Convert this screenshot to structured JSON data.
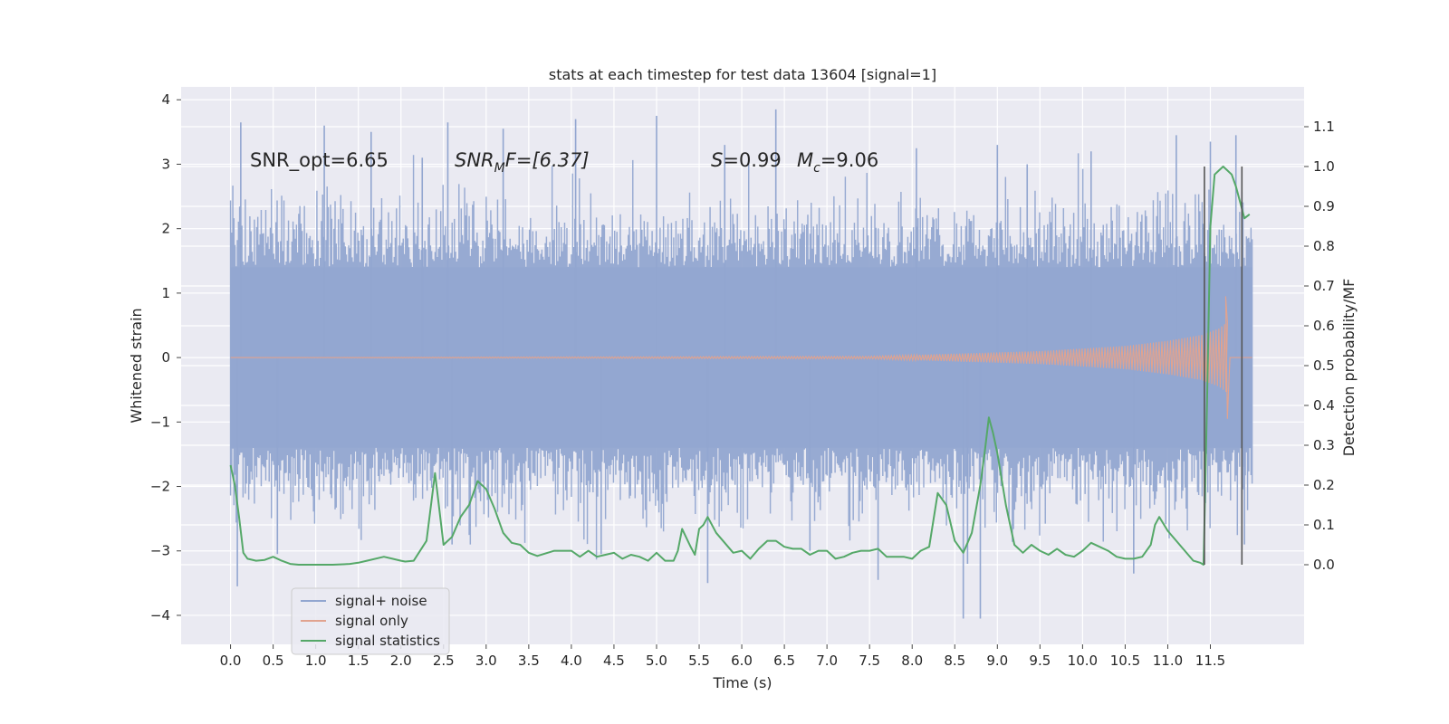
{
  "chart_data": {
    "type": "line",
    "title": "stats at each timestep for test data 13604 [signal=1]",
    "xlabel": "Time (s)",
    "ylabel": "Whitened strain",
    "ylabel_right": "Detection probability/MF",
    "xlim": [
      -0.58,
      12.6
    ],
    "ylim": [
      -4.45,
      4.2
    ],
    "ylim_right": [
      -0.2,
      1.2
    ],
    "xticks": [
      "0.0",
      "0.5",
      "1.0",
      "1.5",
      "2.0",
      "2.5",
      "3.0",
      "3.5",
      "4.0",
      "4.5",
      "5.0",
      "5.5",
      "6.0",
      "6.5",
      "7.0",
      "7.5",
      "8.0",
      "8.5",
      "9.0",
      "9.5",
      "10.0",
      "10.5",
      "11.0",
      "11.5"
    ],
    "yticks_left": [
      "4",
      "3",
      "2",
      "1",
      "0",
      "−1",
      "−2",
      "−3",
      "−4"
    ],
    "yticks_right": [
      "1.1",
      "1.0",
      "0.9",
      "0.8",
      "0.7",
      "0.6",
      "0.5",
      "0.4",
      "0.3",
      "0.2",
      "0.1",
      "0.0"
    ],
    "grid": true,
    "legend_position": "lower-left",
    "annotations": {
      "snr_opt": "SNR_opt=6.65",
      "snr_mf_name": "SNR",
      "snr_mf_sub": "M",
      "snr_mf_rest": "F=[6.37]",
      "s_label": "S",
      "s_value": "=0.99",
      "mc_label": "M",
      "mc_sub": "c",
      "mc_value": "=9.06"
    },
    "vlines": [
      11.43,
      11.87
    ],
    "series": [
      {
        "name": "signal+ noise",
        "color": "#92a6d0",
        "axis": "left",
        "description_time_range": [
          0.0,
          11.99
        ],
        "envelope_typical": [
          -1.4,
          1.4
        ],
        "peak_values": [
          {
            "x": 0.12,
            "y": 3.65
          },
          {
            "x": 0.08,
            "y": -3.55
          },
          {
            "x": 0.55,
            "y": -3.05
          },
          {
            "x": 1.1,
            "y": 3.6
          },
          {
            "x": 1.65,
            "y": 3.5
          },
          {
            "x": 2.25,
            "y": 3.1
          },
          {
            "x": 2.55,
            "y": 3.65
          },
          {
            "x": 2.6,
            "y": -2.9
          },
          {
            "x": 3.2,
            "y": 3.55
          },
          {
            "x": 4.05,
            "y": 3.7
          },
          {
            "x": 4.35,
            "y": -3.05
          },
          {
            "x": 5.0,
            "y": 3.75
          },
          {
            "x": 5.6,
            "y": -3.5
          },
          {
            "x": 5.8,
            "y": 3.3
          },
          {
            "x": 6.4,
            "y": 3.85
          },
          {
            "x": 6.8,
            "y": -3.0
          },
          {
            "x": 7.6,
            "y": -3.45
          },
          {
            "x": 8.05,
            "y": 3.25
          },
          {
            "x": 8.6,
            "y": -4.05
          },
          {
            "x": 8.65,
            "y": -3.2
          },
          {
            "x": 8.8,
            "y": -4.05
          },
          {
            "x": 9.0,
            "y": 3.3
          },
          {
            "x": 9.35,
            "y": 3.0
          },
          {
            "x": 10.1,
            "y": 3.2
          },
          {
            "x": 10.6,
            "y": -3.35
          },
          {
            "x": 11.1,
            "y": 3.45
          },
          {
            "x": 11.5,
            "y": 3.35
          },
          {
            "x": 11.8,
            "y": 3.45
          },
          {
            "x": 11.9,
            "y": -2.9
          }
        ]
      },
      {
        "name": "signal only",
        "color": "#e1a38f",
        "axis": "left",
        "description_time_range": [
          0.0,
          11.99
        ],
        "envelope": [
          {
            "x": 0.0,
            "y": 0.0
          },
          {
            "x": 7.5,
            "y": 0.02
          },
          {
            "x": 8.5,
            "y": 0.06
          },
          {
            "x": 9.5,
            "y": 0.1
          },
          {
            "x": 10.5,
            "y": 0.18
          },
          {
            "x": 11.0,
            "y": 0.26
          },
          {
            "x": 11.4,
            "y": 0.35
          },
          {
            "x": 11.6,
            "y": 0.45
          },
          {
            "x": 11.7,
            "y": 0.55
          }
        ],
        "peak": {
          "x": 11.7,
          "y_max": 0.95,
          "y_min": -0.95
        }
      },
      {
        "name": "signal statistics",
        "color": "#55a868",
        "axis": "right",
        "x": [
          0.0,
          0.05,
          0.1,
          0.15,
          0.2,
          0.3,
          0.4,
          0.5,
          0.6,
          0.7,
          0.8,
          1.0,
          1.2,
          1.4,
          1.5,
          1.6,
          1.8,
          1.9,
          2.0,
          2.05,
          2.15,
          2.3,
          2.4,
          2.5,
          2.6,
          2.7,
          2.8,
          2.9,
          3.0,
          3.1,
          3.2,
          3.3,
          3.4,
          3.5,
          3.6,
          3.8,
          4.0,
          4.1,
          4.2,
          4.3,
          4.4,
          4.5,
          4.6,
          4.7,
          4.8,
          4.9,
          5.0,
          5.1,
          5.2,
          5.25,
          5.3,
          5.4,
          5.45,
          5.5,
          5.55,
          5.6,
          5.7,
          5.8,
          5.9,
          6.0,
          6.1,
          6.2,
          6.3,
          6.4,
          6.5,
          6.6,
          6.7,
          6.8,
          6.9,
          7.0,
          7.1,
          7.2,
          7.3,
          7.4,
          7.5,
          7.6,
          7.7,
          7.8,
          7.9,
          8.0,
          8.1,
          8.2,
          8.3,
          8.4,
          8.5,
          8.6,
          8.7,
          8.8,
          8.85,
          8.9,
          8.95,
          9.0,
          9.1,
          9.2,
          9.3,
          9.4,
          9.5,
          9.6,
          9.7,
          9.8,
          9.9,
          10.0,
          10.1,
          10.2,
          10.3,
          10.4,
          10.5,
          10.6,
          10.7,
          10.8,
          10.85,
          10.9,
          11.0,
          11.1,
          11.2,
          11.3,
          11.38,
          11.42,
          11.46,
          11.5,
          11.55,
          11.6,
          11.65,
          11.7,
          11.75,
          11.8,
          11.85,
          11.9,
          11.96
        ],
        "values": [
          0.25,
          0.2,
          0.12,
          0.03,
          0.015,
          0.01,
          0.012,
          0.02,
          0.01,
          0.002,
          0.0,
          0.0,
          0.0,
          0.002,
          0.005,
          0.01,
          0.02,
          0.015,
          0.01,
          0.008,
          0.01,
          0.06,
          0.23,
          0.05,
          0.07,
          0.12,
          0.15,
          0.21,
          0.19,
          0.14,
          0.08,
          0.055,
          0.05,
          0.03,
          0.022,
          0.035,
          0.035,
          0.02,
          0.035,
          0.02,
          0.025,
          0.03,
          0.015,
          0.025,
          0.02,
          0.01,
          0.03,
          0.01,
          0.01,
          0.035,
          0.09,
          0.045,
          0.025,
          0.09,
          0.1,
          0.12,
          0.08,
          0.055,
          0.03,
          0.035,
          0.015,
          0.04,
          0.06,
          0.06,
          0.045,
          0.04,
          0.04,
          0.025,
          0.035,
          0.035,
          0.015,
          0.02,
          0.03,
          0.035,
          0.035,
          0.04,
          0.02,
          0.02,
          0.02,
          0.015,
          0.035,
          0.045,
          0.18,
          0.15,
          0.06,
          0.03,
          0.08,
          0.2,
          0.28,
          0.37,
          0.33,
          0.28,
          0.15,
          0.05,
          0.03,
          0.05,
          0.035,
          0.025,
          0.04,
          0.025,
          0.02,
          0.035,
          0.055,
          0.045,
          0.035,
          0.02,
          0.015,
          0.015,
          0.02,
          0.05,
          0.1,
          0.12,
          0.085,
          0.06,
          0.035,
          0.01,
          0.005,
          0.0,
          0.4,
          0.85,
          0.98,
          0.99,
          1.0,
          0.99,
          0.98,
          0.95,
          0.91,
          0.87,
          0.88
        ]
      }
    ]
  }
}
